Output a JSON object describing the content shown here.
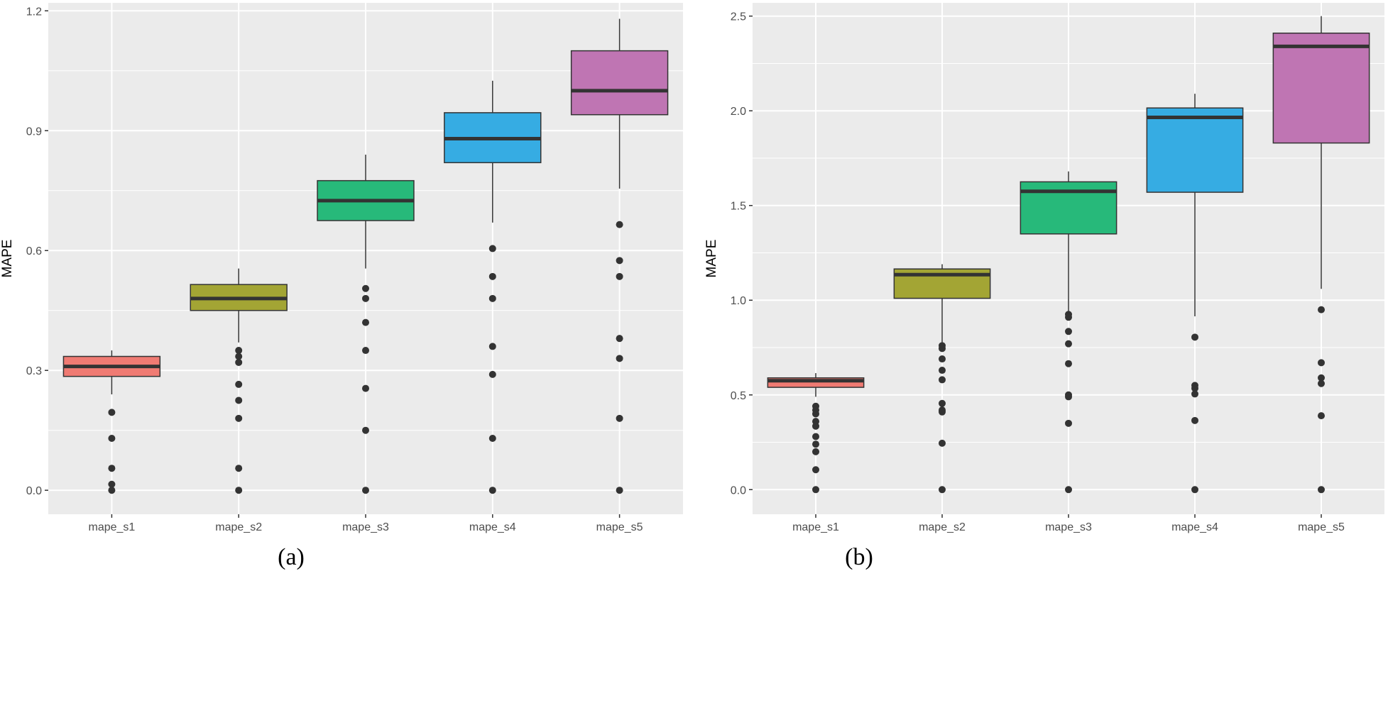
{
  "chart_data": [
    {
      "type": "boxplot",
      "caption": "(a)",
      "ylabel": "MAPE",
      "ylim": [
        -0.06,
        1.22
      ],
      "yticks": [
        0.0,
        0.3,
        0.6,
        0.9,
        1.2
      ],
      "ytick_labels": [
        "0.0",
        "0.3",
        "0.6",
        "0.9",
        "1.2"
      ],
      "categories": [
        "mape_s1",
        "mape_s2",
        "mape_s3",
        "mape_s4",
        "mape_s5"
      ],
      "boxes": [
        {
          "name": "mape_s1",
          "color": "#F07B73",
          "whisker_low": 0.24,
          "q1": 0.285,
          "median": 0.31,
          "q3": 0.335,
          "whisker_high": 0.35,
          "outliers": [
            0.195,
            0.13,
            0.055,
            0.015,
            0.0
          ]
        },
        {
          "name": "mape_s2",
          "color": "#A3A534",
          "whisker_low": 0.37,
          "q1": 0.45,
          "median": 0.48,
          "q3": 0.515,
          "whisker_high": 0.555,
          "outliers": [
            0.35,
            0.335,
            0.32,
            0.265,
            0.225,
            0.18,
            0.055,
            0.0
          ]
        },
        {
          "name": "mape_s3",
          "color": "#27B97A",
          "whisker_low": 0.555,
          "q1": 0.675,
          "median": 0.725,
          "q3": 0.775,
          "whisker_high": 0.84,
          "outliers": [
            0.505,
            0.48,
            0.42,
            0.35,
            0.255,
            0.15,
            0.0
          ]
        },
        {
          "name": "mape_s4",
          "color": "#36ACE3",
          "whisker_low": 0.67,
          "q1": 0.82,
          "median": 0.88,
          "q3": 0.945,
          "whisker_high": 1.025,
          "outliers": [
            0.605,
            0.535,
            0.48,
            0.36,
            0.29,
            0.13,
            0.0
          ]
        },
        {
          "name": "mape_s5",
          "color": "#BF75B3",
          "whisker_low": 0.755,
          "q1": 0.94,
          "median": 1.0,
          "q3": 1.1,
          "whisker_high": 1.18,
          "outliers": [
            0.665,
            0.575,
            0.535,
            0.38,
            0.33,
            0.18,
            0.0
          ]
        }
      ]
    },
    {
      "type": "boxplot",
      "caption": "(b)",
      "ylabel": "MAPE",
      "ylim": [
        -0.13,
        2.57
      ],
      "yticks": [
        0.0,
        0.5,
        1.0,
        1.5,
        2.0,
        2.5
      ],
      "ytick_labels": [
        "0.0",
        "0.5",
        "1.0",
        "1.5",
        "2.0",
        "2.5"
      ],
      "categories": [
        "mape_s1",
        "mape_s2",
        "mape_s3",
        "mape_s4",
        "mape_s5"
      ],
      "boxes": [
        {
          "name": "mape_s1",
          "color": "#F07B73",
          "whisker_low": 0.49,
          "q1": 0.54,
          "median": 0.575,
          "q3": 0.59,
          "whisker_high": 0.615,
          "outliers": [
            0.44,
            0.42,
            0.4,
            0.36,
            0.335,
            0.28,
            0.24,
            0.2,
            0.105,
            0.0
          ]
        },
        {
          "name": "mape_s2",
          "color": "#A3A534",
          "whisker_low": 0.77,
          "q1": 1.01,
          "median": 1.135,
          "q3": 1.165,
          "whisker_high": 1.19,
          "outliers": [
            0.76,
            0.745,
            0.69,
            0.63,
            0.58,
            0.455,
            0.42,
            0.41,
            0.245,
            0.0
          ]
        },
        {
          "name": "mape_s3",
          "color": "#27B97A",
          "whisker_low": 0.94,
          "q1": 1.35,
          "median": 1.575,
          "q3": 1.625,
          "whisker_high": 1.68,
          "outliers": [
            0.925,
            0.91,
            0.835,
            0.77,
            0.665,
            0.5,
            0.49,
            0.35,
            0.0
          ]
        },
        {
          "name": "mape_s4",
          "color": "#36ACE3",
          "whisker_low": 0.915,
          "q1": 1.57,
          "median": 1.965,
          "q3": 2.015,
          "whisker_high": 2.09,
          "outliers": [
            0.805,
            0.55,
            0.535,
            0.505,
            0.365,
            0.0
          ]
        },
        {
          "name": "mape_s5",
          "color": "#BF75B3",
          "whisker_low": 1.06,
          "q1": 1.83,
          "median": 2.34,
          "q3": 2.41,
          "whisker_high": 2.5,
          "outliers": [
            0.95,
            0.67,
            0.59,
            0.56,
            0.39,
            0.0
          ]
        }
      ]
    }
  ],
  "colors": {
    "panel_background": "#EBEBEB",
    "grid": "#FFFFFF",
    "median_line": "#333333",
    "outlier": "#333333"
  }
}
